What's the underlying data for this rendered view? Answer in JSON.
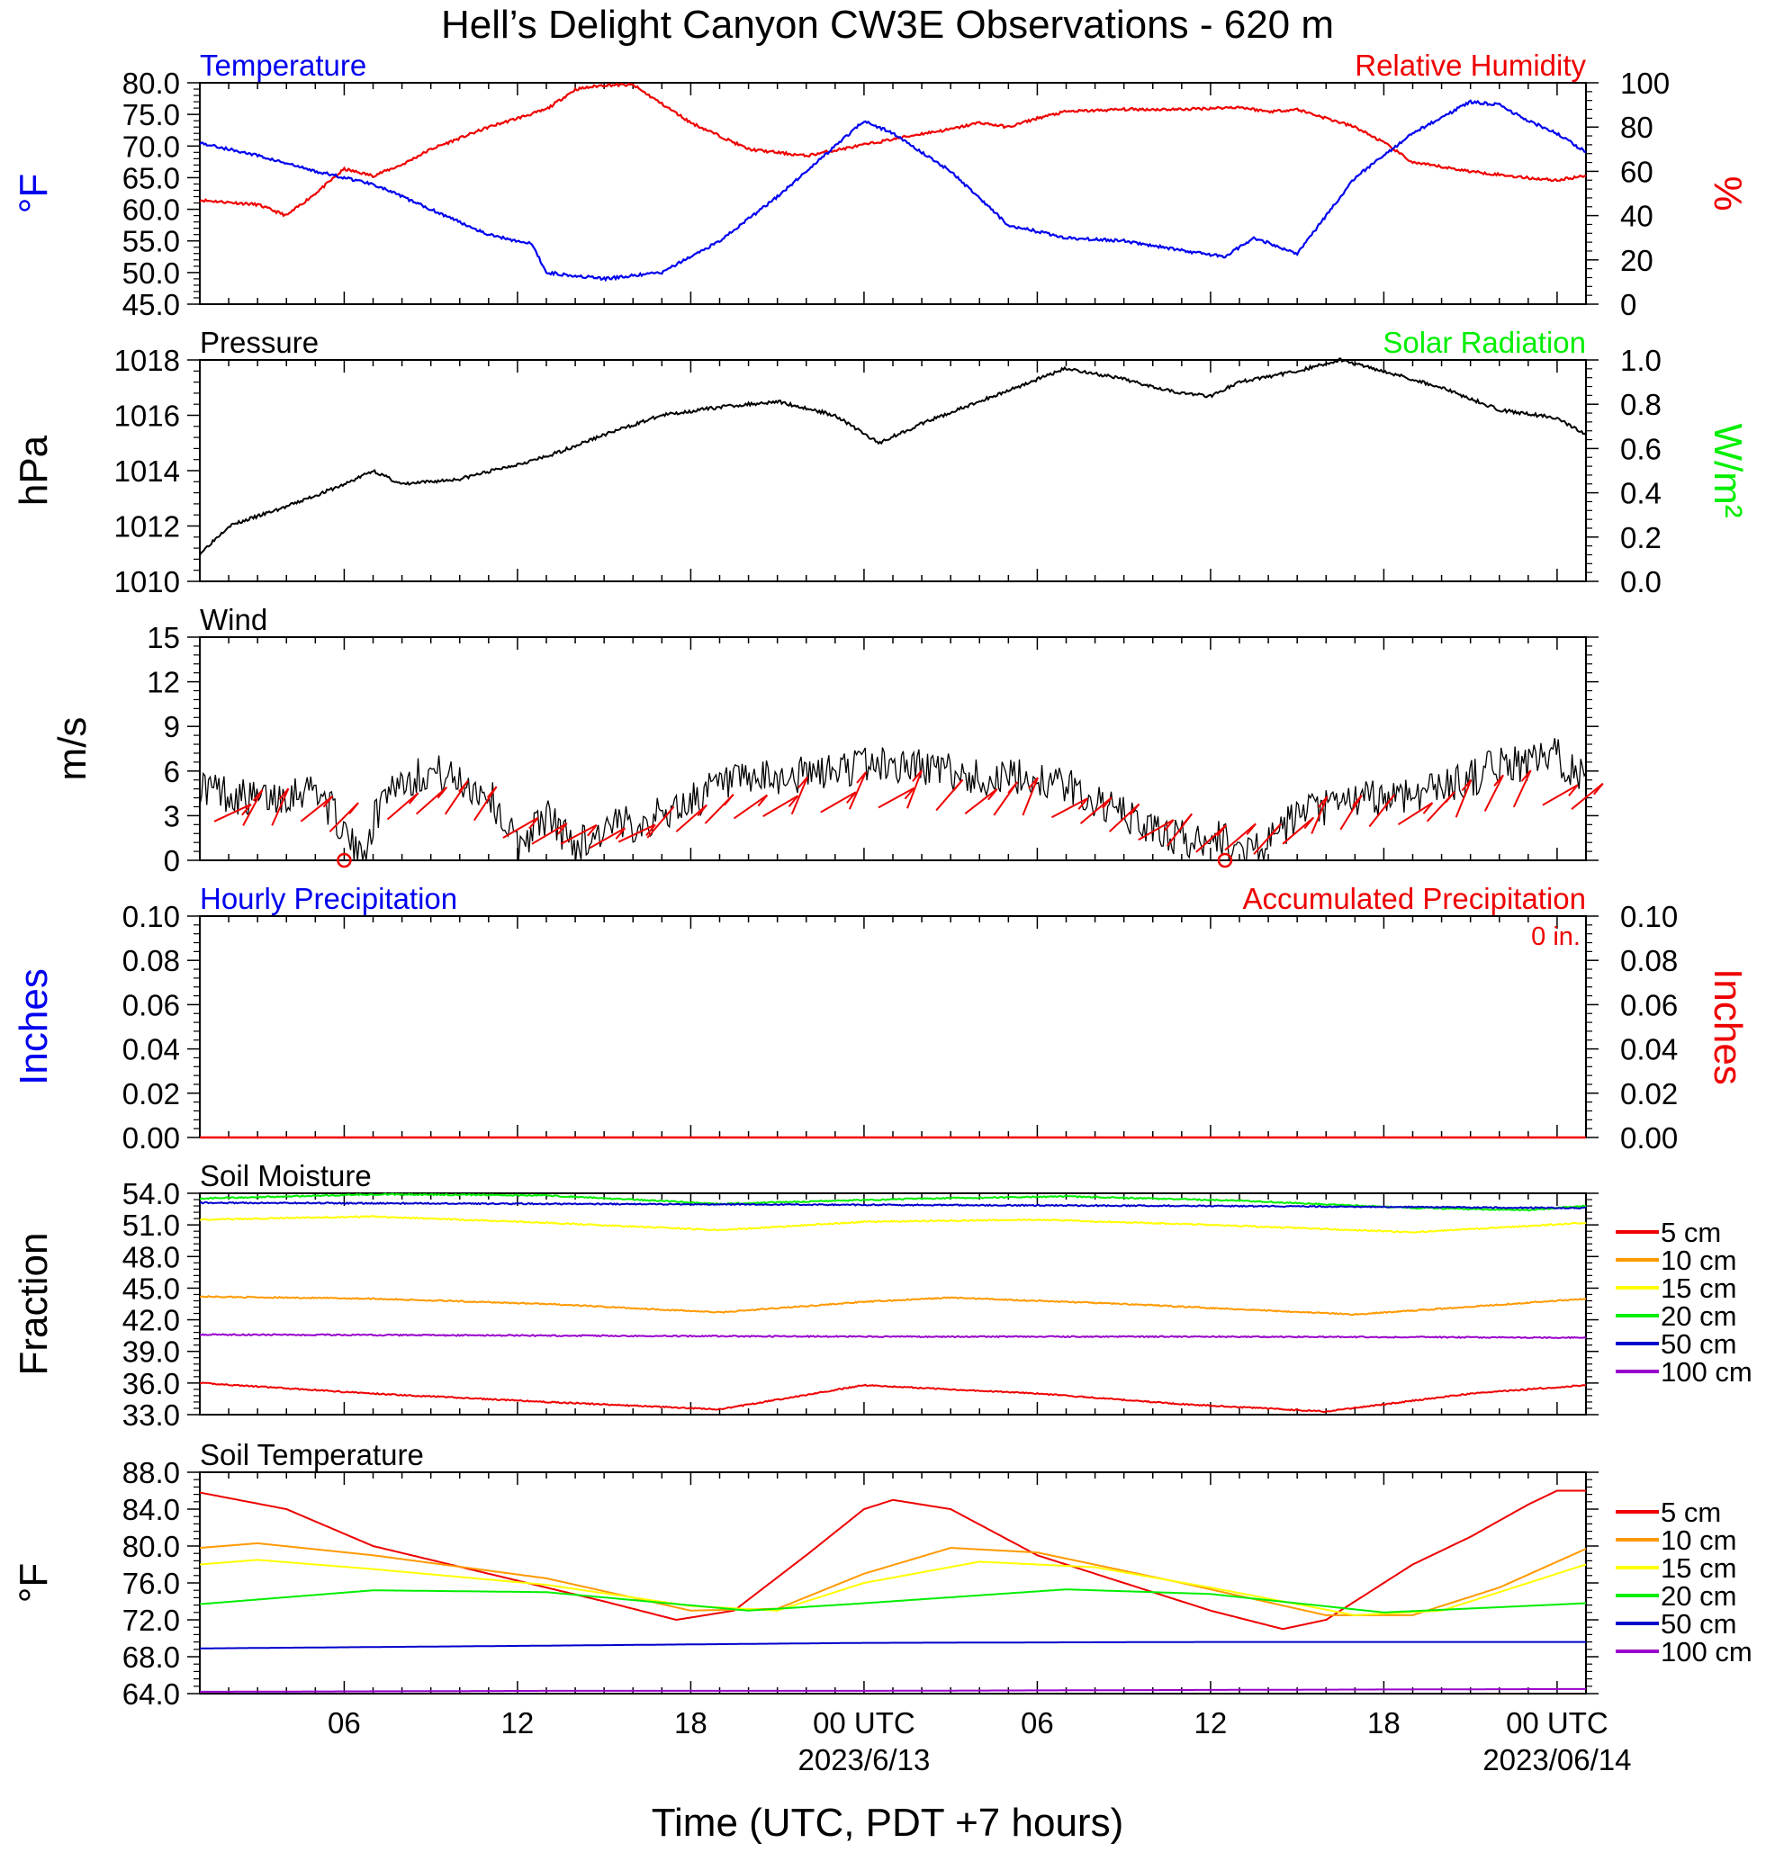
{
  "title": "Hell’s Delight Canyon CW3E Observations - 620 m",
  "xaxis": {
    "label": "Time (UTC, PDT +7 hours)",
    "ticks": [
      "06",
      "12",
      "18",
      "00 UTC",
      "06",
      "12",
      "18",
      "00 UTC"
    ],
    "dates": [
      "2023/6/13",
      "2023/06/14"
    ]
  },
  "colors": {
    "temperature": "#0000ee",
    "humidity": "#ee0000",
    "pressure": "#000000",
    "solar": "#00ee00",
    "wind_barbs": "#ee0000",
    "layers": [
      "#ee0000",
      "#ff9900",
      "#ffff00",
      "#00ee00",
      "#0000cc",
      "#9900cc"
    ]
  },
  "chart_data": [
    {
      "type": "line",
      "title_left": "Temperature",
      "title_right": "Relative Humidity",
      "ylabel_left": "°F",
      "ylabel_right": "%",
      "yticks_left": [
        "80.0",
        "75.0",
        "70.0",
        "65.0",
        "60.0",
        "55.0",
        "50.0",
        "45.0"
      ],
      "yticks_right": [
        "100",
        "80",
        "60",
        "40",
        "20",
        "0"
      ],
      "ylim_left": [
        45,
        80
      ],
      "ylim_right": [
        0,
        100
      ],
      "xlim_hours": [
        -23,
        25
      ],
      "series": [
        {
          "name": "Temperature",
          "axis": "left",
          "x": [
            -23,
            -21,
            -19,
            -17,
            -15,
            -13,
            -11.5,
            -11,
            -9,
            -7,
            -5,
            -3,
            -1,
            0,
            1,
            3,
            5,
            7,
            9,
            11,
            12.5,
            13.5,
            15,
            17,
            19,
            21,
            22,
            23,
            24,
            25
          ],
          "y": [
            70.5,
            68.5,
            66,
            64,
            60,
            56,
            54.5,
            50,
            49,
            50,
            55,
            62,
            70,
            74,
            72,
            66,
            57.5,
            55.5,
            55,
            53.5,
            52.5,
            55.5,
            53,
            65,
            72,
            77,
            76.5,
            74,
            72,
            69
          ]
        },
        {
          "name": "Relative Humidity",
          "axis": "right",
          "x": [
            -23,
            -21,
            -20,
            -19,
            -18,
            -17,
            -16,
            -15,
            -13,
            -11,
            -10,
            -9,
            -8,
            -6,
            -4,
            -2,
            0,
            2,
            3,
            4,
            5,
            6,
            7,
            9,
            11,
            13,
            14,
            15,
            17,
            18,
            19,
            21,
            23,
            24,
            25
          ],
          "y": [
            47,
            45,
            40,
            50,
            61,
            58,
            63,
            70,
            80,
            88,
            97,
            99,
            99,
            82,
            70,
            67,
            72,
            77,
            79,
            82,
            80,
            84,
            87,
            88,
            88,
            89,
            87,
            88,
            80,
            73,
            64,
            60,
            57,
            56,
            58
          ]
        }
      ]
    },
    {
      "type": "line",
      "title_left": "Pressure",
      "title_right": "Solar Radiation",
      "ylabel_left": "hPa",
      "ylabel_right": "W/m²",
      "yticks_left": [
        "1018",
        "1016",
        "1014",
        "1012",
        "1010"
      ],
      "yticks_right": [
        "1.0",
        "0.8",
        "0.6",
        "0.4",
        "0.2",
        "0.0"
      ],
      "ylim_left": [
        1010,
        1018
      ],
      "ylim_right": [
        0,
        1
      ],
      "series": [
        {
          "name": "Pressure",
          "axis": "left",
          "x": [
            -23,
            -22,
            -20,
            -18,
            -17,
            -16,
            -14,
            -11,
            -9,
            -7,
            -5,
            -3,
            -1,
            0.5,
            2,
            4,
            6,
            7,
            9,
            11,
            12,
            13,
            15,
            16.5,
            18,
            20,
            22,
            24,
            25
          ],
          "y": [
            1011,
            1012,
            1012.7,
            1013.5,
            1014,
            1013.5,
            1013.7,
            1014.5,
            1015.3,
            1016,
            1016.3,
            1016.5,
            1016,
            1015,
            1015.7,
            1016.5,
            1017.3,
            1017.7,
            1017.3,
            1016.8,
            1016.7,
            1017.2,
            1017.6,
            1018,
            1017.6,
            1017,
            1016.2,
            1015.9,
            1015.3
          ]
        }
      ]
    },
    {
      "type": "line",
      "title_left": "Wind",
      "ylabel_left": "m/s",
      "yticks_left": [
        "15",
        "12",
        "9",
        "6",
        "3",
        "0"
      ],
      "ylim_left": [
        0,
        15
      ],
      "series": [
        {
          "name": "Wind speed",
          "axis": "left",
          "x": [
            -23,
            -21,
            -19,
            -18,
            -17.5,
            -16.5,
            -15,
            -13,
            -12,
            -11,
            -10,
            -9,
            -7,
            -5,
            -3,
            -1,
            0,
            2,
            4,
            6,
            7,
            8,
            9,
            10,
            11,
            11.5,
            12,
            13,
            14,
            15,
            17,
            19,
            21,
            22,
            23,
            24,
            25
          ],
          "y": [
            5,
            4,
            5,
            2,
            0,
            5,
            6,
            4.5,
            1,
            3,
            1,
            2,
            3,
            5,
            5.5,
            6,
            6.5,
            6.3,
            5.5,
            5.5,
            5,
            4,
            3,
            2,
            1.5,
            1,
            2,
            0.5,
            1,
            3,
            4,
            4.5,
            5.5,
            6.5,
            6.5,
            7,
            5.5
          ]
        }
      ],
      "calm_markers_hours": [
        -18,
        12.5
      ]
    },
    {
      "type": "bar",
      "title_left": "Hourly Precipitation",
      "title_right": "Accumulated Precipitation",
      "total_label": "0 in.",
      "ylabel_left": "Inches",
      "ylabel_right": "Inches",
      "yticks_left": [
        "0.10",
        "0.08",
        "0.06",
        "0.04",
        "0.02",
        "0.00"
      ],
      "yticks_right": [
        "0.10",
        "0.08",
        "0.06",
        "0.04",
        "0.02",
        "0.00"
      ],
      "ylim_left": [
        0,
        0.1
      ],
      "ylim_right": [
        0,
        0.1
      ],
      "series": [
        {
          "name": "Hourly Precipitation",
          "axis": "left",
          "x": [
            -23,
            25
          ],
          "y": [
            0,
            0
          ]
        },
        {
          "name": "Accumulated Precipitation",
          "axis": "right",
          "x": [
            -23,
            25
          ],
          "y": [
            0,
            0
          ]
        }
      ]
    },
    {
      "type": "line",
      "title_left": "Soil Moisture",
      "ylabel_left": "Fraction",
      "yticks_left": [
        "54.0",
        "51.0",
        "48.0",
        "45.0",
        "42.0",
        "39.0",
        "36.0",
        "33.0"
      ],
      "ylim_left": [
        33,
        54
      ],
      "legend": [
        "5 cm",
        "10 cm",
        "15 cm",
        "20 cm",
        "50 cm",
        "100 cm"
      ],
      "series": [
        {
          "name": "5 cm",
          "x": [
            -23,
            -17,
            -11,
            -5,
            0,
            6,
            11,
            16,
            21,
            25
          ],
          "y": [
            36,
            35,
            34.2,
            33.5,
            35.8,
            35,
            34,
            33.3,
            35,
            35.8
          ]
        },
        {
          "name": "10 cm",
          "x": [
            -23,
            -17,
            -11,
            -5,
            0,
            3,
            9,
            17,
            25
          ],
          "y": [
            44.2,
            44,
            43.5,
            42.7,
            43.7,
            44.1,
            43.5,
            42.5,
            44
          ]
        },
        {
          "name": "15 cm",
          "x": [
            -23,
            -17,
            -11,
            -5,
            0,
            6,
            12,
            19,
            25
          ],
          "y": [
            51.5,
            51.8,
            51.2,
            50.5,
            51.3,
            51.5,
            51,
            50.3,
            51.2
          ]
        },
        {
          "name": "20 cm",
          "x": [
            -23,
            -17,
            -11,
            -5,
            2,
            7,
            13,
            19,
            23,
            25
          ],
          "y": [
            53.5,
            53.9,
            53.8,
            53,
            53.5,
            53.7,
            53.3,
            52.6,
            52.4,
            52.8
          ]
        },
        {
          "name": "50 cm",
          "x": [
            -23,
            -11,
            0,
            12,
            25
          ],
          "y": [
            53.1,
            53,
            52.9,
            52.8,
            52.6
          ]
        },
        {
          "name": "100 cm",
          "x": [
            -23,
            -11,
            0,
            12,
            25
          ],
          "y": [
            40.6,
            40.5,
            40.4,
            40.4,
            40.3
          ]
        }
      ]
    },
    {
      "type": "line",
      "title_left": "Soil Temperature",
      "ylabel_left": "°F",
      "yticks_left": [
        "88.0",
        "84.0",
        "80.0",
        "76.0",
        "72.0",
        "68.0",
        "64.0"
      ],
      "ylim_left": [
        64,
        88
      ],
      "legend": [
        "5 cm",
        "10 cm",
        "15 cm",
        "20 cm",
        "50 cm",
        "100 cm"
      ],
      "series": [
        {
          "name": "5 cm",
          "x": [
            -23,
            -20,
            -17,
            -13,
            -9,
            -6.5,
            -4.5,
            -2,
            0,
            1,
            3,
            6,
            9,
            12,
            14.5,
            16,
            17.5,
            19,
            21,
            23,
            24,
            25
          ],
          "y": [
            85.8,
            84,
            80,
            77,
            74,
            72,
            73,
            79,
            84,
            85,
            84,
            79,
            76,
            73,
            71,
            72,
            75,
            78,
            81,
            84.5,
            86,
            86
          ]
        },
        {
          "name": "10 cm",
          "x": [
            -23,
            -21,
            -17,
            -11,
            -6,
            -3,
            0,
            3,
            6,
            11,
            16,
            19,
            22,
            25
          ],
          "y": [
            79.8,
            80.3,
            79,
            76.5,
            73,
            73.2,
            77,
            79.8,
            79.3,
            76,
            72.5,
            72.5,
            75.5,
            79.7
          ]
        },
        {
          "name": "15 cm",
          "x": [
            -23,
            -21,
            -17,
            -11,
            -6,
            -3,
            0,
            4,
            8,
            12,
            17,
            20,
            25
          ],
          "y": [
            78,
            78.5,
            77.5,
            75.8,
            73.5,
            73,
            76,
            78.3,
            77.7,
            75.5,
            72.5,
            73,
            78
          ]
        },
        {
          "name": "20 cm",
          "x": [
            -23,
            -17,
            -11,
            -4,
            0,
            7,
            12,
            18,
            25
          ],
          "y": [
            73.7,
            75.2,
            75,
            73,
            73.8,
            75.3,
            74.8,
            72.8,
            73.8
          ]
        },
        {
          "name": "50 cm",
          "x": [
            -23,
            -11,
            0,
            12,
            25
          ],
          "y": [
            68.9,
            69.2,
            69.5,
            69.6,
            69.6
          ]
        },
        {
          "name": "100 cm",
          "x": [
            -23,
            -11,
            0,
            12,
            25
          ],
          "y": [
            64.2,
            64.3,
            64.3,
            64.4,
            64.5
          ]
        }
      ]
    }
  ]
}
